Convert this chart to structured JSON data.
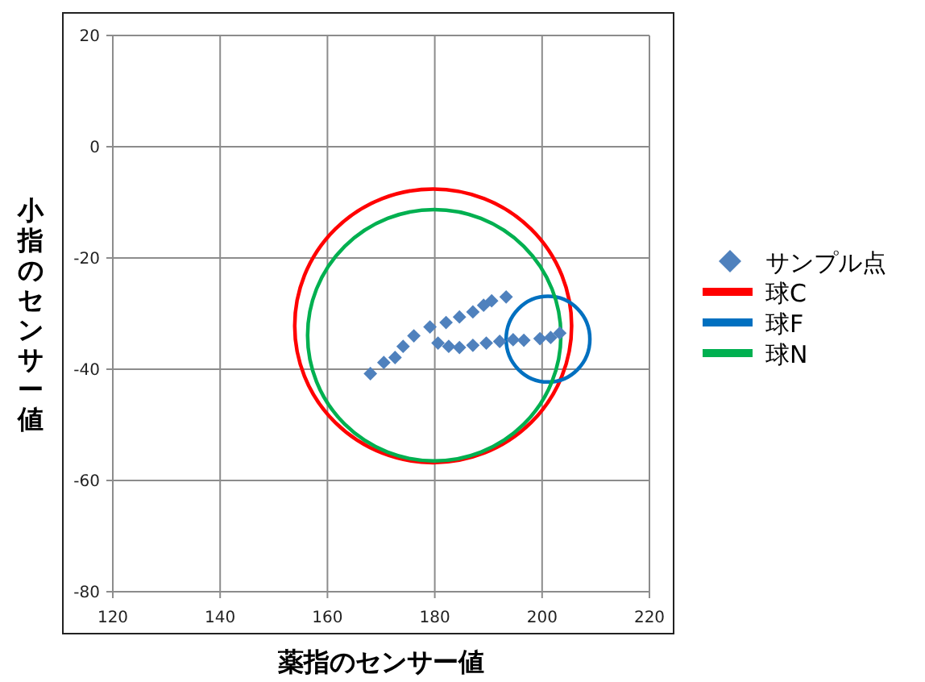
{
  "chart_data": {
    "type": "scatter",
    "xlabel": "薬指のセンサー値",
    "ylabel": "小指のセンサー値",
    "xlim": [
      120,
      220
    ],
    "ylim": [
      -80,
      20
    ],
    "xticks": [
      120,
      140,
      160,
      180,
      200,
      220
    ],
    "yticks": [
      -80,
      -60,
      -40,
      -20,
      0,
      20
    ],
    "grid": true,
    "legend": "right",
    "series": [
      {
        "name": "サンプル点",
        "type": "scatter",
        "marker": "diamond",
        "color": "#4f81bd",
        "x": [
          168.0,
          170.5,
          172.6,
          174.1,
          176.1,
          179.1,
          182.1,
          184.6,
          187.1,
          189.1,
          190.6,
          193.3,
          180.6,
          182.6,
          184.6,
          187.1,
          189.6,
          192.1,
          194.6,
          196.6,
          199.6,
          201.6,
          203.3
        ],
        "values": [
          -40.8,
          -38.8,
          -37.9,
          -35.9,
          -34.0,
          -32.4,
          -31.6,
          -30.6,
          -29.7,
          -28.5,
          -27.7,
          -27.0,
          -35.3,
          -35.9,
          -36.1,
          -35.7,
          -35.3,
          -35.0,
          -34.7,
          -34.8,
          -34.5,
          -34.3,
          -33.5
        ]
      },
      {
        "name": "球C",
        "type": "line",
        "color": "#ff0000"
      },
      {
        "name": "球F",
        "type": "line",
        "color": "#0070c0"
      },
      {
        "name": "球N",
        "type": "line",
        "color": "#00b050"
      }
    ]
  }
}
